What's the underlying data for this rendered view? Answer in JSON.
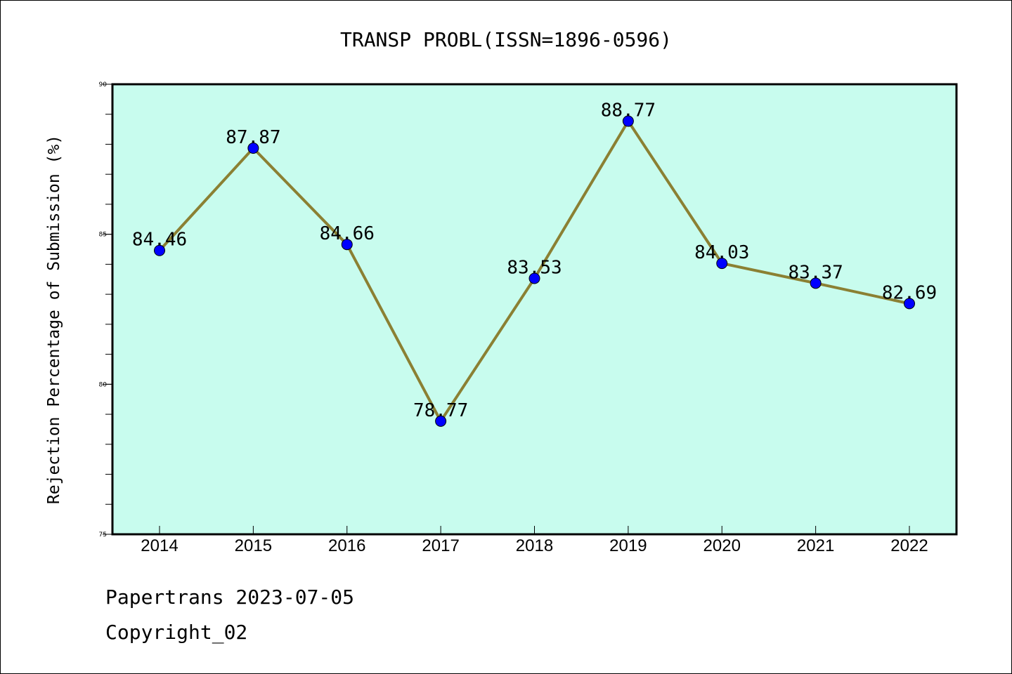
{
  "chart_data": {
    "type": "line",
    "title": "TRANSP PROBL(ISSN=1896-0596)",
    "xlabel": "",
    "ylabel": "Rejection Percentage of Submission (%)",
    "categories": [
      "2014",
      "2015",
      "2016",
      "2017",
      "2018",
      "2019",
      "2020",
      "2021",
      "2022"
    ],
    "values": [
      84.46,
      87.87,
      84.66,
      78.77,
      83.53,
      88.77,
      84.03,
      83.37,
      82.69
    ],
    "data_labels": [
      "84.46",
      "87.87",
      "84.66",
      "78.77",
      "83.53",
      "88.77",
      "84.03",
      "83.37",
      "82.69"
    ],
    "ylim": [
      75,
      90
    ],
    "yticks": [
      "75",
      "80",
      "85",
      "90"
    ],
    "ytick_values": [
      75,
      80,
      85,
      90
    ],
    "grid": false,
    "colors": {
      "plot_background": "#c8fcee",
      "line": "#8b8033",
      "marker": "#0000ff"
    }
  },
  "footer": {
    "source": "Papertrans 2023-07-05",
    "copyright": "Copyright_02"
  }
}
